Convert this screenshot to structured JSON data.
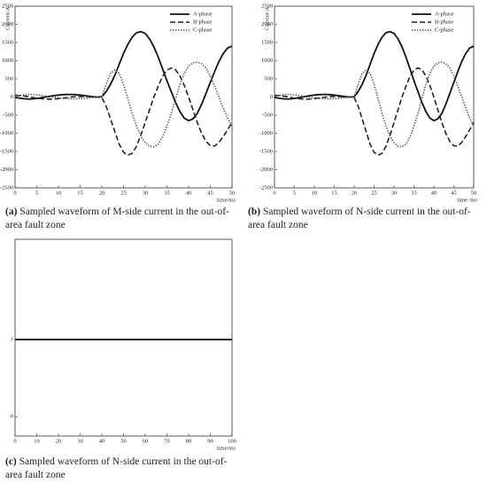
{
  "chart_data": [
    {
      "type": "line",
      "caption": {
        "label": "(a)",
        "text": "Sampled waveform of M-side current in the out-of-area fault zone"
      },
      "y_label": "Current/A",
      "x_label": "time/ms",
      "x": [
        0,
        1,
        2,
        3,
        4,
        5,
        6,
        7,
        8,
        9,
        10,
        11,
        12,
        13,
        14,
        15,
        16,
        17,
        18,
        19,
        20,
        21,
        22,
        23,
        24,
        25,
        26,
        27,
        28,
        29,
        30,
        31,
        32,
        33,
        34,
        35,
        36,
        37,
        38,
        39,
        40,
        41,
        42,
        43,
        44,
        45,
        46,
        47,
        48,
        49,
        50
      ],
      "xlim": [
        0,
        50
      ],
      "xticks": [
        0,
        5,
        10,
        15,
        20,
        25,
        30,
        35,
        40,
        45,
        50
      ],
      "ylim": [
        -2500,
        2500
      ],
      "yticks": [
        2500,
        2000,
        1500,
        1000,
        500,
        0,
        -500,
        -1000,
        -1500,
        -2000,
        -2500
      ],
      "legend": "upper right",
      "series": [
        {
          "name": "A-phase",
          "color": "#111111",
          "style": "solid",
          "values": [
            -10,
            -30,
            -45,
            -55,
            -50,
            -40,
            -20,
            0,
            20,
            40,
            55,
            65,
            70,
            70,
            65,
            55,
            40,
            25,
            10,
            0,
            10,
            150,
            350,
            600,
            900,
            1200,
            1450,
            1650,
            1770,
            1800,
            1750,
            1600,
            1380,
            1100,
            780,
            450,
            150,
            -150,
            -400,
            -580,
            -650,
            -600,
            -450,
            -200,
            100,
            400,
            700,
            980,
            1200,
            1350,
            1400
          ]
        },
        {
          "name": "B-phase",
          "color": "#222222",
          "style": "dashed",
          "values": [
            50,
            40,
            30,
            10,
            -10,
            -30,
            -45,
            -55,
            -60,
            -55,
            -45,
            -30,
            -15,
            0,
            10,
            15,
            15,
            10,
            5,
            0,
            -20,
            -250,
            -600,
            -950,
            -1300,
            -1520,
            -1600,
            -1550,
            -1350,
            -1050,
            -700,
            -350,
            0,
            300,
            570,
            740,
            800,
            750,
            580,
            320,
            0,
            -350,
            -700,
            -1000,
            -1220,
            -1340,
            -1350,
            -1250,
            -1080,
            -900,
            -700
          ]
        },
        {
          "name": "C-phase",
          "color": "#555555",
          "style": "dotted",
          "values": [
            20,
            40,
            60,
            70,
            70,
            60,
            45,
            30,
            10,
            -5,
            -20,
            -35,
            -45,
            -50,
            -50,
            -45,
            -35,
            -25,
            -15,
            -5,
            0,
            350,
            650,
            750,
            650,
            350,
            -50,
            -450,
            -800,
            -1080,
            -1260,
            -1350,
            -1370,
            -1300,
            -1100,
            -800,
            -450,
            -50,
            350,
            650,
            850,
            940,
            960,
            920,
            800,
            580,
            300,
            0,
            -300,
            -580,
            -800
          ]
        }
      ]
    },
    {
      "type": "line",
      "caption": {
        "label": "(b)",
        "text": "Sampled waveform of N-side current in the out-of-area fault zone"
      },
      "y_label": "Current/A",
      "x_label": "time /ms",
      "x": [
        0,
        1,
        2,
        3,
        4,
        5,
        6,
        7,
        8,
        9,
        10,
        11,
        12,
        13,
        14,
        15,
        16,
        17,
        18,
        19,
        20,
        21,
        22,
        23,
        24,
        25,
        26,
        27,
        28,
        29,
        30,
        31,
        32,
        33,
        34,
        35,
        36,
        37,
        38,
        39,
        40,
        41,
        42,
        43,
        44,
        45,
        46,
        47,
        48,
        49,
        50
      ],
      "xlim": [
        0,
        50
      ],
      "xticks": [
        0,
        5,
        10,
        15,
        20,
        25,
        30,
        35,
        40,
        45,
        50
      ],
      "ylim": [
        -2500,
        2500
      ],
      "yticks": [
        2500,
        2000,
        1500,
        1000,
        500,
        0,
        -500,
        -1000,
        -1500,
        -2000,
        -2500
      ],
      "legend": "upper right",
      "series": [
        {
          "name": "A-phase",
          "color": "#111111",
          "style": "solid",
          "values": [
            -10,
            -30,
            -45,
            -55,
            -50,
            -40,
            -20,
            0,
            20,
            40,
            55,
            65,
            70,
            70,
            65,
            55,
            40,
            25,
            10,
            0,
            10,
            150,
            350,
            600,
            900,
            1200,
            1450,
            1650,
            1770,
            1800,
            1750,
            1600,
            1380,
            1100,
            780,
            450,
            150,
            -150,
            -400,
            -580,
            -650,
            -600,
            -450,
            -200,
            100,
            400,
            700,
            980,
            1200,
            1350,
            1400
          ]
        },
        {
          "name": "B-phase",
          "color": "#222222",
          "style": "dashed",
          "values": [
            50,
            40,
            30,
            10,
            -10,
            -30,
            -45,
            -55,
            -60,
            -55,
            -45,
            -30,
            -15,
            0,
            10,
            15,
            15,
            10,
            5,
            0,
            -20,
            -250,
            -600,
            -950,
            -1300,
            -1520,
            -1600,
            -1550,
            -1350,
            -1050,
            -700,
            -350,
            0,
            300,
            570,
            740,
            800,
            750,
            580,
            320,
            0,
            -350,
            -700,
            -1000,
            -1220,
            -1340,
            -1350,
            -1250,
            -1080,
            -900,
            -700
          ]
        },
        {
          "name": "C-phase",
          "color": "#555555",
          "style": "dotted",
          "values": [
            20,
            40,
            60,
            70,
            70,
            60,
            45,
            30,
            10,
            -5,
            -20,
            -35,
            -45,
            -50,
            -50,
            -45,
            -35,
            -25,
            -15,
            -5,
            0,
            350,
            650,
            750,
            650,
            350,
            -50,
            -450,
            -800,
            -1080,
            -1260,
            -1350,
            -1370,
            -1300,
            -1100,
            -800,
            -450,
            -50,
            350,
            650,
            850,
            940,
            960,
            920,
            800,
            580,
            300,
            0,
            -300,
            -580,
            -800
          ]
        }
      ]
    },
    {
      "type": "line",
      "caption": {
        "label": "(c)",
        "text": "Sampled waveform of N-side current in the out-of-area fault zone"
      },
      "x_label": "time/ms",
      "x": [
        0,
        100
      ],
      "xlim": [
        0,
        100
      ],
      "xticks": [
        0,
        10,
        20,
        30,
        40,
        50,
        60,
        70,
        80,
        90,
        100
      ],
      "ylim": [
        -0.25,
        2.3
      ],
      "yticks": [
        0,
        1
      ],
      "series": [
        {
          "color": "#111111",
          "style": "solid",
          "values": [
            1,
            1
          ]
        }
      ]
    }
  ]
}
